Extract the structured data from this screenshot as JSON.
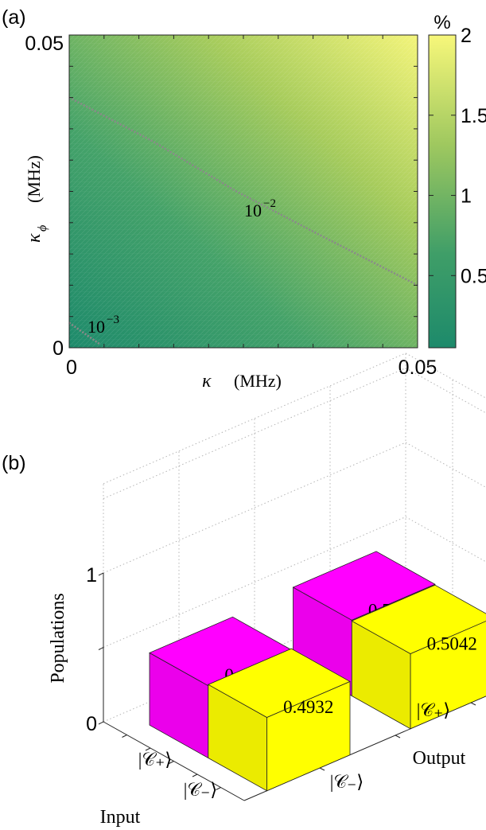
{
  "chart_data": [
    {
      "type": "heatmap",
      "panel_label": "(a)",
      "xlabel_symbol": "κ",
      "xlabel_unit": "(MHz)",
      "ylabel_symbol": "κ",
      "ylabel_sub": "ϕ",
      "ylabel_unit": "(MHz)",
      "x_ticks": [
        "0",
        "0.05"
      ],
      "y_ticks": [
        "0",
        "0.05"
      ],
      "xlim": [
        0,
        0.05
      ],
      "ylim": [
        0,
        0.05
      ],
      "colorbar": {
        "unit_label": "%",
        "ticks": [
          "0.5",
          "1",
          "1.5",
          "2"
        ],
        "tick_values": [
          0.5,
          1,
          1.5,
          2
        ],
        "range": [
          0.05,
          2
        ],
        "low_color": "#1d8a6b",
        "high_color": "#f3f47a"
      },
      "contours": [
        {
          "label_base": "10",
          "label_exp": "−2",
          "points": [
            [
              0,
              0.04
            ],
            [
              0.012,
              0.033
            ],
            [
              0.024,
              0.025
            ],
            [
              0.036,
              0.018
            ],
            [
              0.05,
              0.01
            ]
          ]
        },
        {
          "label_base": "10",
          "label_exp": "−3",
          "points": [
            [
              0,
              0.004
            ],
            [
              0.0045,
              0.0005
            ]
          ]
        }
      ]
    },
    {
      "type": "bar",
      "subtype": "3d-bar",
      "panel_label": "(b)",
      "zlabel": "Populations",
      "z_ticks": [
        "0",
        "1"
      ],
      "zlim": [
        0,
        1
      ],
      "input_axis_label": "Input",
      "output_axis_label": "Output",
      "input_tick_labels": [
        "|𝒞₊⟩",
        "|𝒞₋⟩"
      ],
      "output_tick_labels": [
        "|𝒞₋⟩",
        "|𝒞₊⟩"
      ],
      "bars": [
        {
          "input": "|𝒞₊⟩",
          "output": "|𝒞₊⟩",
          "value": 0.5096,
          "label": "0.5096",
          "color": "#ff00ff"
        },
        {
          "input": "|𝒞₋⟩",
          "output": "|𝒞₊⟩",
          "value": 0.5042,
          "label": "0.5042",
          "color": "#ffff00"
        },
        {
          "input": "|𝒞₊⟩",
          "output": "|𝒞₋⟩",
          "value": 0.4854,
          "label": "0.4854",
          "color": "#ff00ff"
        },
        {
          "input": "|𝒞₋⟩",
          "output": "|𝒞₋⟩",
          "value": 0.4932,
          "label": "0.4932",
          "color": "#ffff00"
        }
      ]
    }
  ]
}
